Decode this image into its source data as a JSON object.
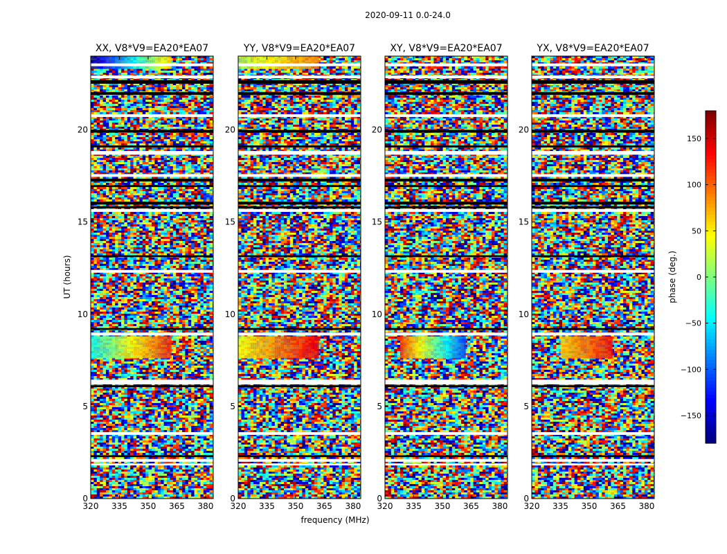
{
  "figure": {
    "suptitle": "2020-09-11 0.0-24.0",
    "xlabel": "frequency (MHz)",
    "ylabel": "UT (hours)"
  },
  "chart_data": {
    "type": "heatmap",
    "description_units": "phase in degrees vs frequency (MHz) and UT (hours)",
    "xlim": [
      320,
      384
    ],
    "ylim": [
      0,
      24
    ],
    "x_ticks": [
      320,
      335,
      350,
      365,
      380
    ],
    "y_ticks": [
      0,
      5,
      10,
      15,
      20
    ],
    "panels": [
      {
        "title": "XX, V8*V9=EA20*EA07",
        "show_yticks": true
      },
      {
        "title": "YY, V8*V9=EA20*EA07",
        "show_yticks": true
      },
      {
        "title": "XY, V8*V9=EA20*EA07",
        "show_yticks": true
      },
      {
        "title": "YX, V8*V9=EA20*EA07",
        "show_yticks": true
      }
    ],
    "colorbar": {
      "label": "phase (deg.)",
      "vmin": -180,
      "vmax": 180,
      "ticks": [
        -150,
        -100,
        -50,
        0,
        50,
        100,
        150
      ],
      "tick_labels": [
        "−150",
        "−100",
        "−50",
        "0",
        "50",
        "100",
        "150"
      ],
      "colormap": "jet"
    },
    "blank_bands_hours": [
      [
        23.45,
        23.6
      ],
      [
        22.8,
        22.95
      ],
      [
        20.7,
        20.85
      ],
      [
        18.65,
        18.85
      ],
      [
        17.45,
        17.6
      ],
      [
        15.55,
        15.7
      ],
      [
        12.25,
        12.4
      ],
      [
        8.85,
        9.0
      ],
      [
        6.2,
        6.45
      ],
      [
        3.45,
        3.6
      ],
      [
        2.0,
        2.15
      ],
      [
        1.8,
        1.9
      ]
    ],
    "dark_bands_hours": [
      [
        22.5,
        22.7
      ],
      [
        21.9,
        22.05
      ],
      [
        19.85,
        20.0
      ],
      [
        19.05,
        19.15
      ],
      [
        17.2,
        17.35
      ],
      [
        16.9,
        17.0
      ],
      [
        15.95,
        16.1
      ],
      [
        15.75,
        15.85
      ],
      [
        13.1,
        13.2
      ],
      [
        9.15,
        9.25
      ],
      [
        6.05,
        6.15
      ],
      [
        2.25,
        2.35
      ]
    ],
    "smooth_phase_regions": [
      {
        "panel": "XX",
        "hours": [
          23.3,
          24.0
        ],
        "freq": [
          320,
          362
        ],
        "phase_from": -170,
        "phase_to": 60
      },
      {
        "panel": "XX",
        "hours": [
          7.6,
          8.8
        ],
        "freq": [
          320,
          362
        ],
        "phase_from": -40,
        "phase_to": 120
      },
      {
        "panel": "YY",
        "hours": [
          23.3,
          24.0
        ],
        "freq": [
          320,
          362
        ],
        "phase_from": 20,
        "phase_to": 90
      },
      {
        "panel": "YY",
        "hours": [
          7.6,
          8.8
        ],
        "freq": [
          320,
          362
        ],
        "phase_from": 40,
        "phase_to": 140
      },
      {
        "panel": "XY",
        "hours": [
          7.6,
          8.8
        ],
        "freq": [
          328,
          362
        ],
        "phase_from": 110,
        "phase_to": -110
      },
      {
        "panel": "YX",
        "hours": [
          7.6,
          8.8
        ],
        "freq": [
          335,
          362
        ],
        "phase_from": 60,
        "phase_to": 130
      }
    ]
  },
  "colors": {
    "background": "#ffffff",
    "axis": "#000000",
    "blank": "#ffffff",
    "flagged": "#000000"
  }
}
